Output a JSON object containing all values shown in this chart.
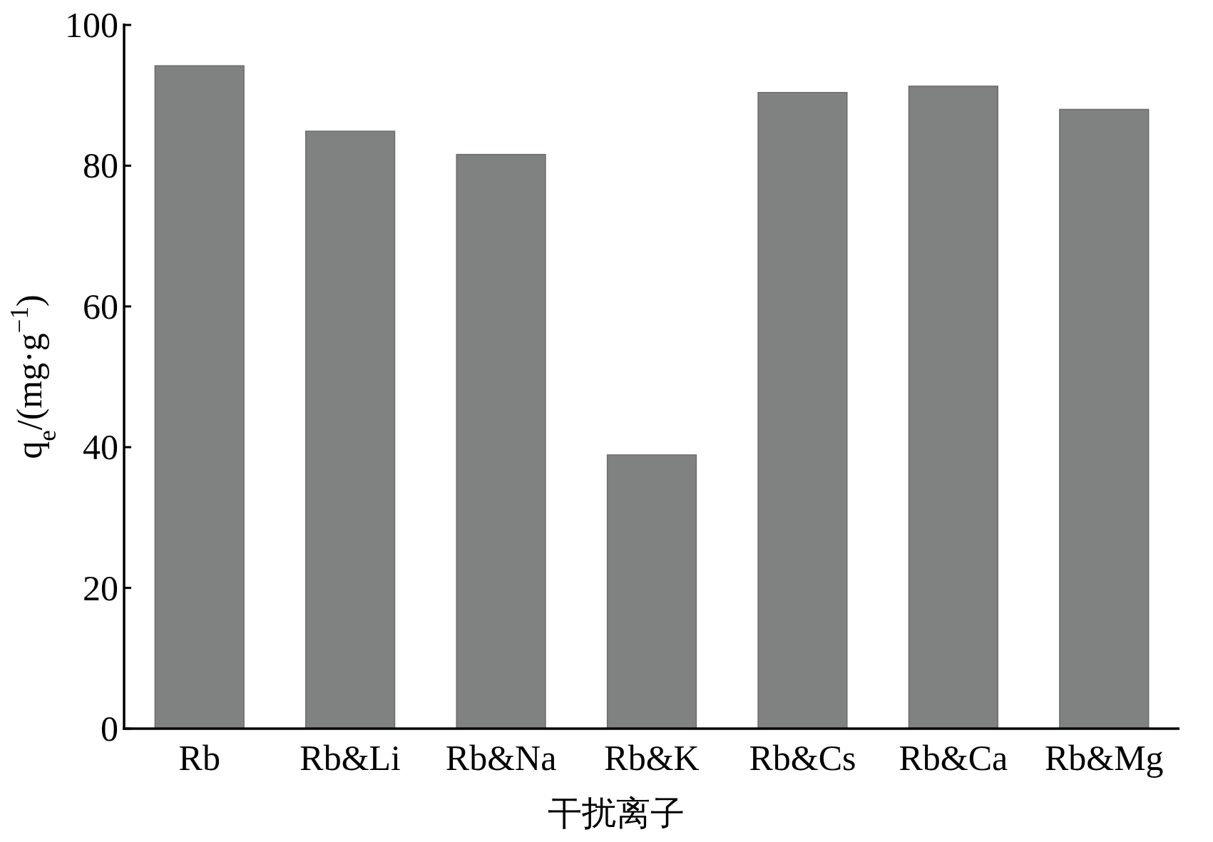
{
  "chart_data": {
    "type": "bar",
    "xlabel": "干扰离子",
    "ylabel": "q$_{e}$/(mg·g$^{−1}$)",
    "categories": [
      "Rb",
      "Rb&Li",
      "Rb&Na",
      "Rb&K",
      "Rb&Cs",
      "Rb&Ca",
      "Rb&Mg"
    ],
    "values": [
      94.2,
      84.9,
      81.6,
      38.9,
      90.4,
      91.3,
      88.0
    ],
    "color": "#7f8280",
    "ylim": [
      0,
      100
    ],
    "yticks": [
      0,
      20,
      40,
      60,
      80,
      100
    ]
  }
}
